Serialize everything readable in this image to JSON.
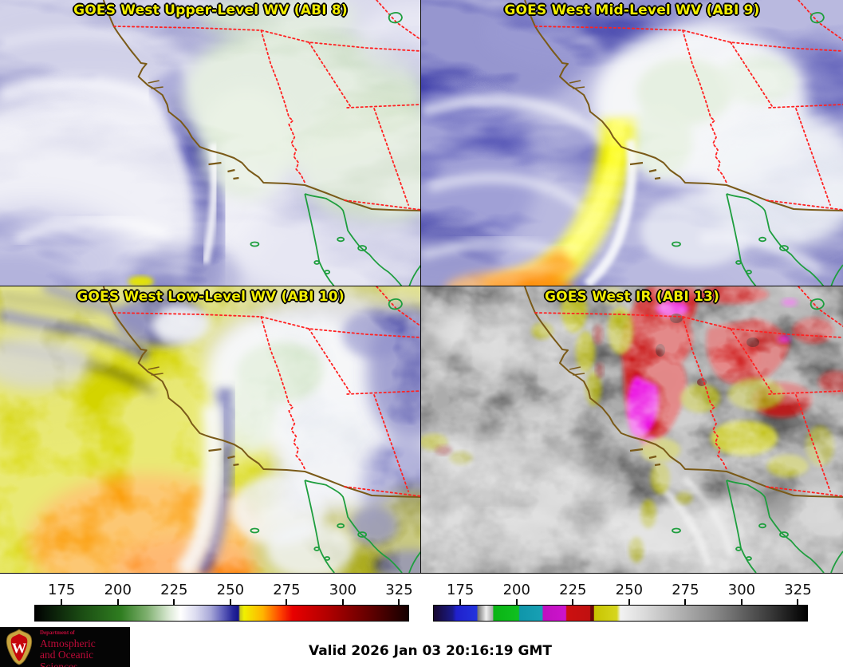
{
  "panels": [
    {
      "title": "GOES West Upper-Level WV (ABI 8)"
    },
    {
      "title": "GOES West Mid-Level WV (ABI 9)"
    },
    {
      "title": "GOES West Low-Level WV (ABI 10)"
    },
    {
      "title": "GOES West IR (ABI 13)"
    }
  ],
  "colorbars": {
    "wv": {
      "ticks": [
        "175",
        "200",
        "225",
        "250",
        "275",
        "300",
        "325"
      ],
      "stops": [
        [
          0,
          "#000000"
        ],
        [
          0.03,
          "#071407"
        ],
        [
          0.13,
          "#1c4f14"
        ],
        [
          0.23,
          "#2f7d20"
        ],
        [
          0.3,
          "#7fb06f"
        ],
        [
          0.36,
          "#dcead6"
        ],
        [
          0.39,
          "#ffffff"
        ],
        [
          0.43,
          "#dcdcf0"
        ],
        [
          0.47,
          "#a8a8d8"
        ],
        [
          0.505,
          "#5c5cb8"
        ],
        [
          0.53,
          "#26269a"
        ],
        [
          0.545,
          "#14148a"
        ],
        [
          0.549,
          "#c8c820"
        ],
        [
          0.56,
          "#f0f000"
        ],
        [
          0.61,
          "#ffb400"
        ],
        [
          0.655,
          "#ff4800"
        ],
        [
          0.69,
          "#e80000"
        ],
        [
          0.78,
          "#b40000"
        ],
        [
          0.9,
          "#600000"
        ],
        [
          1,
          "#140000"
        ]
      ]
    },
    "ir": {
      "ticks": [
        "175",
        "200",
        "225",
        "250",
        "275",
        "300",
        "325"
      ],
      "stops": [
        [
          0,
          "#180830"
        ],
        [
          0.05,
          "#1a1a88"
        ],
        [
          0.06,
          "#2020cc"
        ],
        [
          0.115,
          "#2233dd"
        ],
        [
          0.118,
          "#777777"
        ],
        [
          0.14,
          "#f0f0f0"
        ],
        [
          0.158,
          "#aaaaaa"
        ],
        [
          0.16,
          "#0ab414"
        ],
        [
          0.227,
          "#10c020"
        ],
        [
          0.23,
          "#0f96aa"
        ],
        [
          0.29,
          "#18a0b4"
        ],
        [
          0.293,
          "#c010c0"
        ],
        [
          0.353,
          "#cc14cc"
        ],
        [
          0.356,
          "#cc1010"
        ],
        [
          0.418,
          "#c01010"
        ],
        [
          0.42,
          "#6e0808"
        ],
        [
          0.428,
          "#6e0808"
        ],
        [
          0.43,
          "#c8c400"
        ],
        [
          0.49,
          "#d6d61e"
        ],
        [
          0.5,
          "#f2f2f2"
        ],
        [
          0.56,
          "#dcdcdc"
        ],
        [
          0.75,
          "#8a8a8a"
        ],
        [
          0.9,
          "#3a3a3a"
        ],
        [
          1,
          "#000000"
        ]
      ]
    }
  },
  "footer": {
    "valid": "Valid 2026 Jan 03 20:16:19 GMT"
  },
  "logo": {
    "dept_label": "Department of",
    "line1": "Atmospheric",
    "line2": "and Oceanic Sciences",
    "monogram": "W"
  },
  "colors": {
    "panel_title": "#f2ee00",
    "state_border": "#ff2222",
    "coastline": "#7a5a18",
    "mexico_coast_green": "#1e9e3e",
    "background": "#ffffff",
    "logo_bg": "#050505",
    "logo_text": "#bd0a38"
  }
}
